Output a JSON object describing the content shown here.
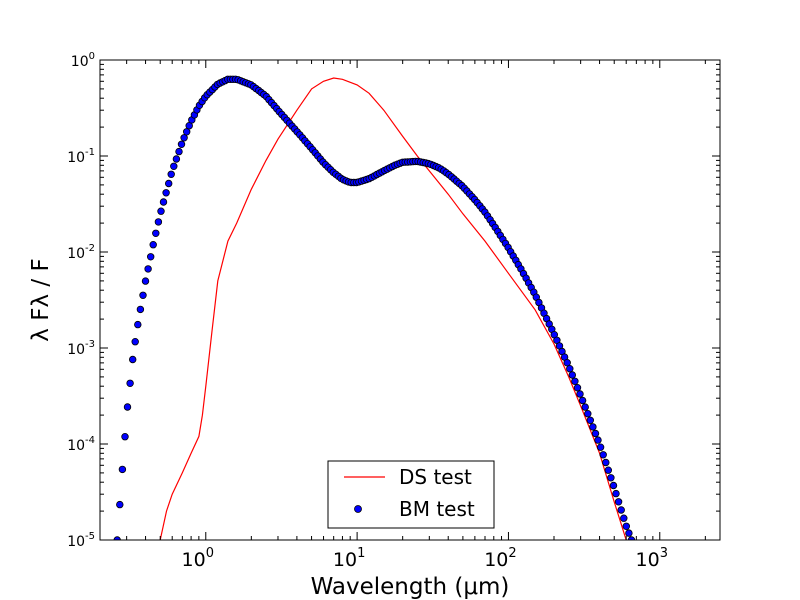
{
  "chart_data": {
    "type": "scatter",
    "xlabel": "Wavelength (μm)",
    "ylabel": "λ Fλ / F",
    "x_scale": "log",
    "y_scale": "log",
    "xlim": [
      0.2,
      2500
    ],
    "ylim": [
      1e-05,
      1
    ],
    "grid": false,
    "legend_position": "lower-center",
    "x_ticks": [
      {
        "value": 1,
        "base": "10",
        "exp": "0"
      },
      {
        "value": 10,
        "base": "10",
        "exp": "1"
      },
      {
        "value": 100,
        "base": "10",
        "exp": "2"
      },
      {
        "value": 1000,
        "base": "10",
        "exp": "3"
      }
    ],
    "y_ticks": [
      {
        "value": 1,
        "base": "10",
        "exp": "0"
      },
      {
        "value": 0.1,
        "base": "10",
        "exp": "-1"
      },
      {
        "value": 0.01,
        "base": "10",
        "exp": "-2"
      },
      {
        "value": 0.001,
        "base": "10",
        "exp": "-3"
      },
      {
        "value": 0.0001,
        "base": "10",
        "exp": "-4"
      },
      {
        "value": 1e-05,
        "base": "10",
        "exp": "-5"
      }
    ],
    "series": [
      {
        "name": "DS test",
        "kind": "line",
        "color": "#ff0000",
        "points": [
          [
            0.5,
            1e-05
          ],
          [
            0.55,
            2e-05
          ],
          [
            0.6,
            3e-05
          ],
          [
            0.7,
            5e-05
          ],
          [
            0.8,
            8e-05
          ],
          [
            0.9,
            0.00012
          ],
          [
            0.95,
            0.0002
          ],
          [
            1.0,
            0.0004
          ],
          [
            1.1,
            0.0015
          ],
          [
            1.2,
            0.005
          ],
          [
            1.4,
            0.013
          ],
          [
            1.6,
            0.02
          ],
          [
            2.0,
            0.045
          ],
          [
            2.5,
            0.09
          ],
          [
            3.0,
            0.15
          ],
          [
            4.0,
            0.3
          ],
          [
            5.0,
            0.5
          ],
          [
            6.0,
            0.6
          ],
          [
            7.0,
            0.65
          ],
          [
            8.0,
            0.63
          ],
          [
            10.0,
            0.55
          ],
          [
            12.0,
            0.45
          ],
          [
            15.0,
            0.3
          ],
          [
            20.0,
            0.16
          ],
          [
            25.0,
            0.1
          ],
          [
            30.0,
            0.07
          ],
          [
            40.0,
            0.04
          ],
          [
            50.0,
            0.025
          ],
          [
            70.0,
            0.013
          ],
          [
            100.0,
            0.006
          ],
          [
            150.0,
            0.0025
          ],
          [
            200.0,
            0.0011
          ],
          [
            250.0,
            0.0005
          ],
          [
            300.0,
            0.00025
          ],
          [
            400.0,
            8e-05
          ],
          [
            500.0,
            2.5e-05
          ],
          [
            600.0,
            1e-05
          ]
        ]
      },
      {
        "name": "BM test",
        "kind": "scatter",
        "color": "#0000ff",
        "edge_color": "#000000",
        "points": [
          [
            0.26,
            1e-05
          ],
          [
            0.28,
            5e-05
          ],
          [
            0.3,
            0.0002
          ],
          [
            0.33,
            0.0008
          ],
          [
            0.36,
            0.002
          ],
          [
            0.4,
            0.005
          ],
          [
            0.45,
            0.012
          ],
          [
            0.5,
            0.025
          ],
          [
            0.6,
            0.07
          ],
          [
            0.7,
            0.14
          ],
          [
            0.8,
            0.23
          ],
          [
            0.9,
            0.33
          ],
          [
            1.0,
            0.42
          ],
          [
            1.2,
            0.56
          ],
          [
            1.4,
            0.63
          ],
          [
            1.6,
            0.63
          ],
          [
            2.0,
            0.55
          ],
          [
            2.5,
            0.42
          ],
          [
            3.0,
            0.3
          ],
          [
            4.0,
            0.18
          ],
          [
            5.0,
            0.12
          ],
          [
            6.0,
            0.085
          ],
          [
            7.0,
            0.067
          ],
          [
            8.0,
            0.057
          ],
          [
            9.0,
            0.053
          ],
          [
            10.0,
            0.053
          ],
          [
            12.0,
            0.058
          ],
          [
            15.0,
            0.07
          ],
          [
            18.0,
            0.081
          ],
          [
            20.0,
            0.086
          ],
          [
            25.0,
            0.088
          ],
          [
            30.0,
            0.083
          ],
          [
            35.0,
            0.075
          ],
          [
            40.0,
            0.065
          ],
          [
            50.0,
            0.048
          ],
          [
            60.0,
            0.035
          ],
          [
            70.0,
            0.026
          ],
          [
            80.0,
            0.019
          ],
          [
            100.0,
            0.011
          ],
          [
            120.0,
            0.0068
          ],
          [
            150.0,
            0.0036
          ],
          [
            200.0,
            0.0014
          ],
          [
            250.0,
            0.00065
          ],
          [
            300.0,
            0.00032
          ],
          [
            400.0,
            0.0001
          ],
          [
            500.0,
            3.5e-05
          ],
          [
            600.0,
            1.4e-05
          ],
          [
            650.0,
            1e-05
          ]
        ]
      }
    ]
  }
}
